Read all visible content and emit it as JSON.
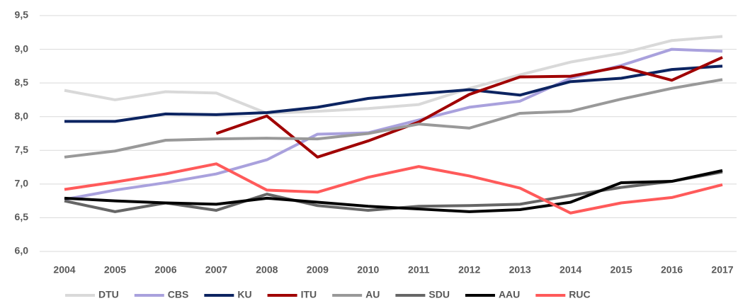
{
  "chart_data": {
    "type": "line",
    "categories": [
      "2004",
      "2005",
      "2006",
      "2007",
      "2008",
      "2009",
      "2010",
      "2011",
      "2012",
      "2013",
      "2014",
      "2015",
      "2016",
      "2017"
    ],
    "ylim": [
      6.0,
      9.5
    ],
    "yticks": [
      {
        "value": 6.0,
        "label": "6,0"
      },
      {
        "value": 6.5,
        "label": "6,5"
      },
      {
        "value": 7.0,
        "label": "7,0"
      },
      {
        "value": 7.5,
        "label": "7,5"
      },
      {
        "value": 8.0,
        "label": "8,0"
      },
      {
        "value": 8.5,
        "label": "8,5"
      },
      {
        "value": 9.0,
        "label": "9,0"
      },
      {
        "value": 9.5,
        "label": "9,5"
      }
    ],
    "grid": true,
    "legend": "bottom",
    "series": [
      {
        "name": "DTU",
        "color": "#d9d9d9",
        "values": [
          8.39,
          8.25,
          8.37,
          8.35,
          8.05,
          8.08,
          8.12,
          8.18,
          8.42,
          8.62,
          8.81,
          8.94,
          9.13,
          9.19
        ]
      },
      {
        "name": "CBS",
        "color": "#a9a1dd",
        "values": [
          6.77,
          6.91,
          7.02,
          7.15,
          7.36,
          7.74,
          7.76,
          7.95,
          8.14,
          8.23,
          8.57,
          8.76,
          9.0,
          8.97
        ]
      },
      {
        "name": "KU",
        "color": "#0c2461",
        "values": [
          7.93,
          7.93,
          8.04,
          8.03,
          8.06,
          8.14,
          8.27,
          8.34,
          8.4,
          8.32,
          8.52,
          8.57,
          8.7,
          8.75
        ]
      },
      {
        "name": "ITU",
        "color": "#a00000",
        "values": [
          null,
          null,
          null,
          7.75,
          8.01,
          7.4,
          7.64,
          7.92,
          8.33,
          8.59,
          8.6,
          8.74,
          8.54,
          8.88
        ]
      },
      {
        "name": "AU",
        "color": "#999999",
        "values": [
          7.4,
          7.49,
          7.65,
          7.67,
          7.68,
          7.67,
          7.75,
          7.89,
          7.83,
          8.05,
          8.08,
          8.26,
          8.42,
          8.55
        ]
      },
      {
        "name": "SDU",
        "color": "#666666",
        "values": [
          6.75,
          6.59,
          6.72,
          6.61,
          6.85,
          6.68,
          6.61,
          6.67,
          6.68,
          6.7,
          6.83,
          6.95,
          7.04,
          7.18
        ]
      },
      {
        "name": "AAU",
        "color": "#000000",
        "values": [
          6.79,
          6.75,
          6.72,
          6.7,
          6.79,
          6.73,
          6.67,
          6.63,
          6.59,
          6.62,
          6.73,
          7.02,
          7.04,
          7.2
        ]
      },
      {
        "name": "RUC",
        "color": "#ff5a5a",
        "values": [
          6.92,
          7.03,
          7.15,
          7.3,
          6.91,
          6.88,
          7.1,
          7.26,
          7.12,
          6.94,
          6.57,
          6.72,
          6.8,
          6.99
        ]
      }
    ]
  }
}
